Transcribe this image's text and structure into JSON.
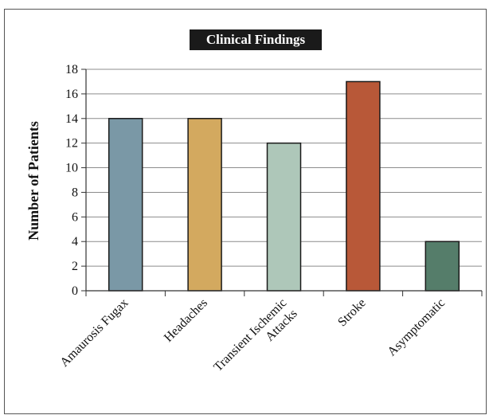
{
  "chart_data": {
    "type": "bar",
    "title": "Clinical Findings",
    "ylabel": "Number of Patients",
    "xlabel": "",
    "categories": [
      [
        "Amaurosis Fugax"
      ],
      [
        "Headaches"
      ],
      [
        "Transient Ischemic",
        "Attacks"
      ],
      [
        "Stroke"
      ],
      [
        "Asymptomatic"
      ]
    ],
    "values": [
      14,
      14,
      12,
      17,
      4
    ],
    "colors": [
      "#7a98a6",
      "#d3a95f",
      "#aec7b9",
      "#b85838",
      "#557d6a"
    ],
    "ylim": [
      0,
      18
    ],
    "yticks": [
      "0",
      "2",
      "4",
      "6",
      "8",
      "10",
      "12",
      "14",
      "16",
      "18"
    ],
    "grid": true
  }
}
